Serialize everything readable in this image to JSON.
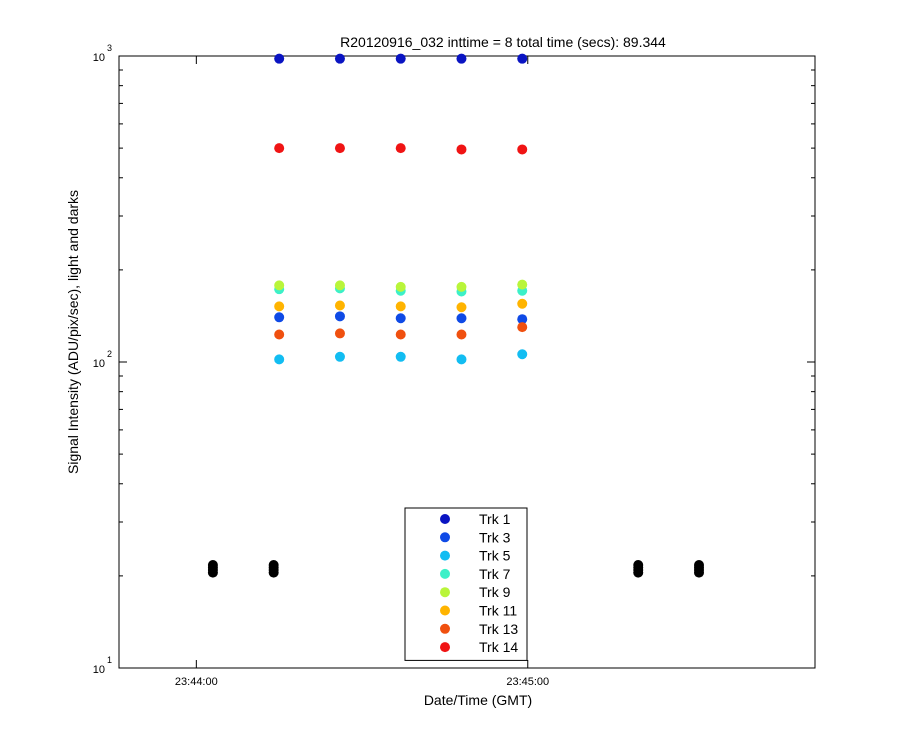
{
  "chart_data": {
    "type": "scatter",
    "title": "R20120916_032 inttime = 8 total time (secs): 89.344",
    "xlabel": "Date/Time (GMT)",
    "ylabel": "Signal Intensity (ADU/pix/sec), light and darks",
    "yscale": "log",
    "ylim": [
      10,
      1000
    ],
    "xlim": [
      "23:43:46",
      "23:45:52"
    ],
    "y_ticks": [
      {
        "value": 10,
        "base": "10",
        "exp": "1"
      },
      {
        "value": 100,
        "base": "10",
        "exp": "2"
      },
      {
        "value": 1000,
        "base": "10",
        "exp": "3"
      }
    ],
    "x_ticks": [
      "23:44:00",
      "23:45:00"
    ],
    "legend_position": "bottom-center",
    "grid": false,
    "x": [
      "23:44:15",
      "23:44:26",
      "23:44:37",
      "23:44:48",
      "23:44:59"
    ],
    "series": [
      {
        "name": "Trk 1",
        "color": "#0a14c2",
        "values": [
          980,
          980,
          980,
          980,
          980
        ]
      },
      {
        "name": "Trk 3",
        "color": "#0f4ae6",
        "values": [
          140,
          141,
          139,
          139,
          138
        ]
      },
      {
        "name": "Trk 5",
        "color": "#12bdf2",
        "values": [
          102,
          104,
          104,
          102,
          106
        ]
      },
      {
        "name": "Trk 7",
        "color": "#3cf0c8",
        "values": [
          173,
          174,
          171,
          170,
          171
        ]
      },
      {
        "name": "Trk 9",
        "color": "#b9f53a",
        "values": [
          178,
          178,
          176,
          176,
          179
        ]
      },
      {
        "name": "Trk 11",
        "color": "#ffb400",
        "values": [
          152,
          153,
          152,
          151,
          155
        ]
      },
      {
        "name": "Trk 13",
        "color": "#f0500f",
        "values": [
          123,
          124,
          123,
          123,
          130
        ]
      },
      {
        "name": "Trk 14",
        "color": "#f01414",
        "values": [
          500,
          500,
          500,
          495,
          495
        ]
      }
    ],
    "darks": {
      "color": "#000000",
      "x": [
        "23:44:03",
        "23:44:14",
        "23:45:20",
        "23:45:31"
      ],
      "values": [
        20.5,
        20.9,
        21.3,
        21.7
      ]
    }
  }
}
